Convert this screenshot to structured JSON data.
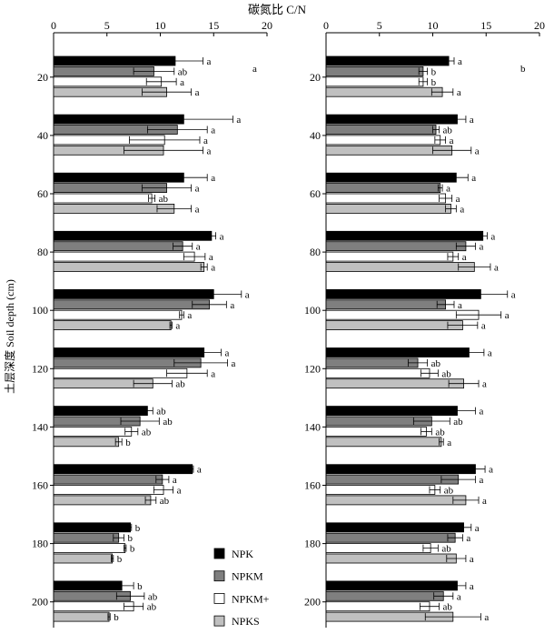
{
  "chart_data": {
    "type": "bar",
    "orientation": "horizontal",
    "title": "碳氮比 C/N",
    "ylabel": "土层深度 Soil depth (cm)",
    "xlim": [
      0,
      20
    ],
    "x_ticks": [
      0,
      5,
      10,
      15,
      20
    ],
    "categories": [
      20,
      40,
      60,
      80,
      100,
      120,
      140,
      160,
      180,
      200
    ],
    "legend_position": "bottom-right of left panel",
    "series": [
      {
        "name": "NPK",
        "color": "#000000"
      },
      {
        "name": "NPKM",
        "color": "#7f7f7f"
      },
      {
        "name": "NPKM+",
        "color": "#ffffff"
      },
      {
        "name": "NPKS",
        "color": "#c0c0c0"
      }
    ],
    "panels": [
      {
        "extra_labels": [
          "a"
        ],
        "values": [
          [
            11.4,
            9.4,
            10.1,
            10.6
          ],
          [
            12.2,
            11.6,
            10.4,
            10.3
          ],
          [
            12.2,
            10.6,
            9.2,
            11.3
          ],
          [
            14.8,
            12.1,
            13.2,
            14.1
          ],
          [
            15.0,
            14.6,
            12.0,
            11.0
          ],
          [
            14.1,
            13.8,
            12.5,
            9.3
          ],
          [
            8.8,
            8.1,
            7.3,
            6.1
          ],
          [
            13.0,
            10.2,
            10.3,
            9.1
          ],
          [
            7.2,
            6.1,
            6.7,
            5.5
          ],
          [
            6.4,
            7.2,
            7.5,
            5.2
          ]
        ],
        "errors": [
          [
            2.6,
            1.9,
            1.4,
            2.3
          ],
          [
            4.6,
            2.8,
            3.3,
            3.7
          ],
          [
            2.2,
            2.3,
            0.3,
            1.6
          ],
          [
            0.4,
            0.9,
            1.0,
            0.3
          ],
          [
            2.6,
            1.6,
            0.2,
            0.1
          ],
          [
            1.6,
            2.5,
            1.9,
            1.8
          ],
          [
            0.5,
            1.8,
            0.6,
            0.3
          ],
          [
            0.1,
            0.6,
            0.9,
            0.5
          ],
          [
            0.1,
            0.5,
            0.1,
            0.1
          ],
          [
            1.1,
            1.3,
            0.9,
            0.1
          ]
        ],
        "letters": [
          [
            "a",
            "ab",
            "a",
            "a"
          ],
          [
            "a",
            "a",
            "a",
            "a"
          ],
          [
            "a",
            "a",
            "ab",
            "a"
          ],
          [
            "a",
            "a",
            "a",
            "a"
          ],
          [
            "a",
            "a",
            "a",
            "a"
          ],
          [
            "a",
            "a",
            "a",
            "ab"
          ],
          [
            "ab",
            "ab",
            "ab",
            "b"
          ],
          [
            "a",
            "a",
            "a",
            "ab"
          ],
          [
            "b",
            "b",
            "b",
            "b"
          ],
          [
            "b",
            "ab",
            "ab",
            "b"
          ]
        ]
      },
      {
        "extra_labels": [
          "b"
        ],
        "values": [
          [
            11.5,
            9.1,
            9.1,
            10.9
          ],
          [
            12.3,
            10.3,
            10.7,
            11.8
          ],
          [
            12.2,
            10.7,
            11.2,
            11.7
          ],
          [
            14.7,
            13.1,
            11.9,
            13.9
          ],
          [
            14.5,
            11.2,
            14.3,
            12.8
          ],
          [
            13.4,
            8.6,
            9.7,
            12.9
          ],
          [
            12.3,
            9.9,
            9.4,
            10.8
          ],
          [
            14.0,
            12.4,
            10.2,
            13.1
          ],
          [
            12.9,
            12.1,
            9.8,
            12.2
          ],
          [
            12.3,
            11.0,
            9.7,
            11.9
          ]
        ],
        "errors": [
          [
            0.5,
            0.4,
            0.4,
            1.0
          ],
          [
            0.8,
            0.3,
            0.5,
            1.8
          ],
          [
            1.1,
            0.2,
            0.6,
            0.5
          ],
          [
            0.4,
            0.9,
            0.5,
            1.5
          ],
          [
            2.5,
            0.8,
            2.1,
            1.4
          ],
          [
            1.4,
            0.9,
            0.8,
            1.4
          ],
          [
            1.7,
            1.7,
            0.5,
            0.2
          ],
          [
            0.9,
            1.6,
            0.5,
            1.2
          ],
          [
            0.7,
            0.7,
            0.7,
            0.9
          ],
          [
            0.8,
            0.9,
            0.9,
            2.6
          ]
        ],
        "letters": [
          [
            "a",
            "b",
            "b",
            "a"
          ],
          [
            "a",
            "ab",
            "a",
            "a"
          ],
          [
            "a",
            "a",
            "a",
            "a"
          ],
          [
            "a",
            "a",
            "a",
            "a"
          ],
          [
            "a",
            "a",
            "a",
            "a"
          ],
          [
            "a",
            "ab",
            "ab",
            "a"
          ],
          [
            "a",
            "ab",
            "ab",
            "a"
          ],
          [
            "a",
            "a",
            "ab",
            "a"
          ],
          [
            "a",
            "a",
            "ab",
            "a"
          ],
          [
            "a",
            "a",
            "ab",
            "a"
          ]
        ]
      }
    ]
  }
}
